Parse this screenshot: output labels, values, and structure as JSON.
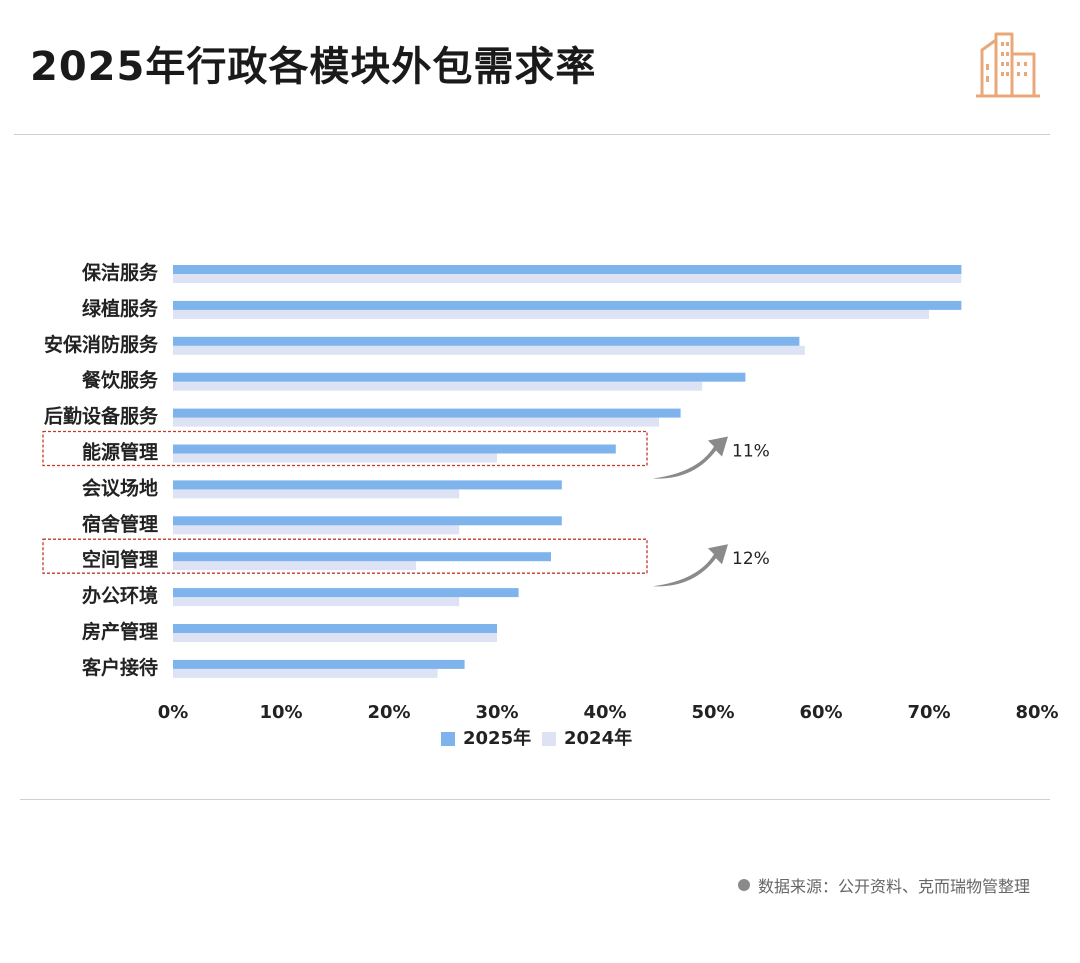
{
  "title": "2025年行政各模块外包需求率",
  "source": "数据来源：公开资料、克而瑞物管整理",
  "icons": {
    "logo": "building-icon",
    "bullet": "dot-icon"
  },
  "colors": {
    "series_2025": "#7fb3ec",
    "series_2024": "#dde3f4",
    "highlight_box": "#c0392b",
    "arrow": "#8a8a8a",
    "logo": "#e8a878"
  },
  "chart_data": {
    "type": "bar",
    "orientation": "horizontal",
    "categories": [
      "保洁服务",
      "绿植服务",
      "安保消防服务",
      "餐饮服务",
      "后勤设备服务",
      "能源管理",
      "会议场地",
      "宿舍管理",
      "空间管理",
      "办公环境",
      "房产管理",
      "客户接待"
    ],
    "series": [
      {
        "name": "2025年",
        "values": [
          73,
          73,
          58,
          53,
          47,
          41,
          36,
          36,
          35,
          32,
          30,
          27
        ]
      },
      {
        "name": "2024年",
        "values": [
          73,
          70,
          58.5,
          49,
          45,
          30,
          26.5,
          26.5,
          22.5,
          26.5,
          30,
          24.5
        ]
      }
    ],
    "x_ticks": [
      "0%",
      "10%",
      "20%",
      "30%",
      "40%",
      "50%",
      "60%",
      "70%",
      "80%"
    ],
    "xlim": [
      0,
      80
    ],
    "legend_position": "bottom",
    "annotations": [
      {
        "category": "能源管理",
        "text": "11%"
      },
      {
        "category": "空间管理",
        "text": "12%"
      }
    ]
  }
}
